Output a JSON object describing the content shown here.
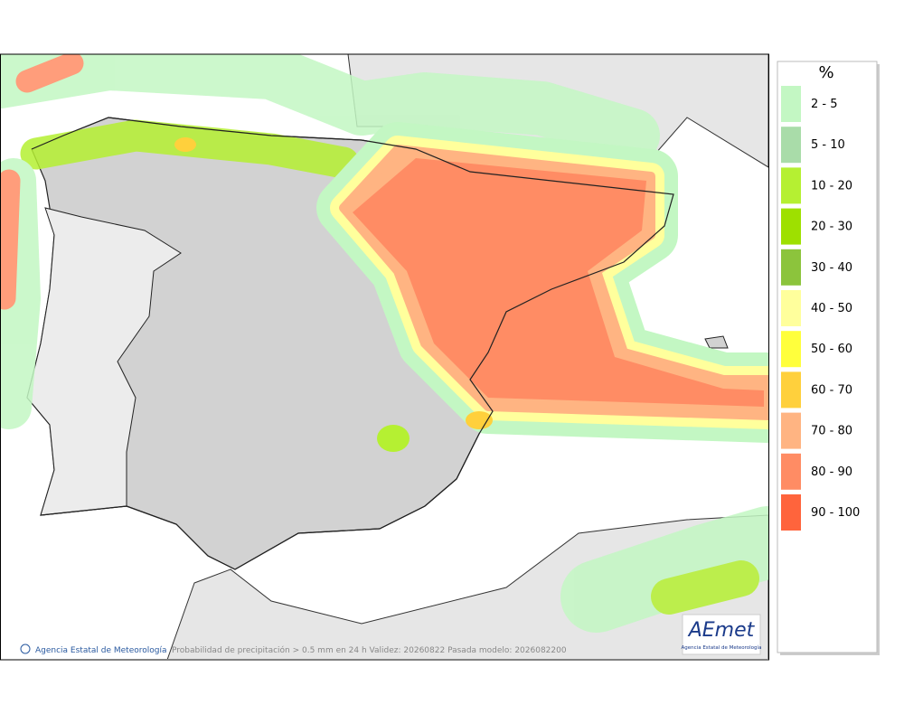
{
  "legend": {
    "title": "%",
    "items": [
      {
        "label": "2 - 5",
        "color": "#c3f7c3"
      },
      {
        "label": "5 - 10",
        "color": "#a9dca9"
      },
      {
        "label": "10 - 20",
        "color": "#b5f032"
      },
      {
        "label": "20 - 30",
        "color": "#9ee000"
      },
      {
        "label": "30 - 40",
        "color": "#8cc43c"
      },
      {
        "label": "40 - 50",
        "color": "#ffff9c"
      },
      {
        "label": "50 - 60",
        "color": "#ffff3c"
      },
      {
        "label": "60 - 70",
        "color": "#ffd03c"
      },
      {
        "label": "70 - 80",
        "color": "#ffb482"
      },
      {
        "label": "80 - 90",
        "color": "#ff8c64"
      },
      {
        "label": "90 - 100",
        "color": "#ff643c"
      }
    ]
  },
  "footer": {
    "agency": "Agencia Estatal de Meteorología",
    "caption": "Probabilidad de precipitación > 0.5 mm en 24 h Validez: 20260822 Pasada modelo: 2026082200"
  },
  "logo": {
    "text": "AEmet",
    "subtitle": "Agencia Estatal de Meteorología"
  }
}
